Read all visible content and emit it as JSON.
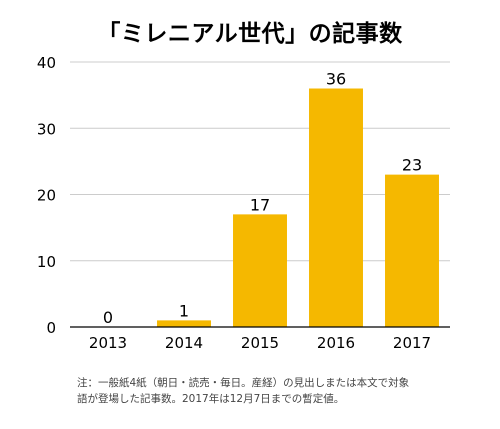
{
  "chart_data": {
    "type": "bar",
    "title": "「ミレニアル世代」の記事数",
    "categories": [
      "2013",
      "2014",
      "2015",
      "2016",
      "2017"
    ],
    "values": [
      0,
      1,
      17,
      36,
      23
    ],
    "ylim": [
      0,
      40
    ],
    "yticks": [
      0,
      10,
      20,
      30,
      40
    ],
    "grid": true,
    "bar_color": "#f5b800",
    "data_labels": true
  },
  "note": {
    "line1": "注：一般紙4紙（朝日・読売・毎日。産経）の見出しまたは本文で対象",
    "line2": "語が登場した記事数。2017年は12月7日までの暫定値。"
  }
}
